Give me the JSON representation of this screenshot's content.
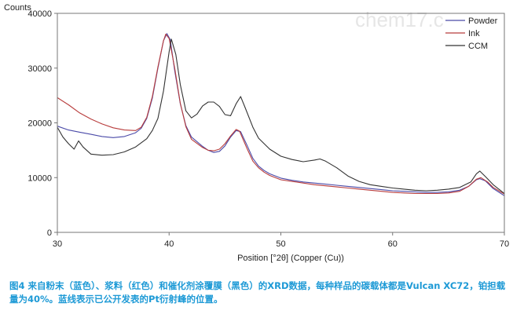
{
  "chart_data": {
    "type": "line",
    "ylabel": "Counts",
    "xlabel": "Position [°2θ] (Copper (Cu))",
    "xlim": [
      30,
      70
    ],
    "ylim": [
      0,
      40000
    ],
    "x_ticks": [
      "30",
      "40",
      "50",
      "60",
      "70"
    ],
    "y_ticks": [
      "0",
      "10000",
      "20000",
      "30000",
      "40000"
    ],
    "grid": false,
    "legend_position": "top-right",
    "series": [
      {
        "name": "Powder",
        "color": "#4a4aa8",
        "points": [
          [
            30,
            19400
          ],
          [
            31,
            18700
          ],
          [
            32,
            18300
          ],
          [
            33,
            17900
          ],
          [
            34,
            17500
          ],
          [
            35,
            17300
          ],
          [
            36,
            17500
          ],
          [
            37,
            18200
          ],
          [
            37.5,
            19000
          ],
          [
            38,
            20800
          ],
          [
            38.5,
            24500
          ],
          [
            39,
            30000
          ],
          [
            39.5,
            35000
          ],
          [
            39.8,
            36300
          ],
          [
            40.1,
            35200
          ],
          [
            40.5,
            29500
          ],
          [
            41,
            23500
          ],
          [
            41.5,
            19500
          ],
          [
            42,
            17400
          ],
          [
            43,
            15700
          ],
          [
            43.5,
            15000
          ],
          [
            44,
            14600
          ],
          [
            44.5,
            14800
          ],
          [
            45,
            15800
          ],
          [
            45.5,
            17400
          ],
          [
            46,
            18600
          ],
          [
            46.4,
            18400
          ],
          [
            47,
            15800
          ],
          [
            47.5,
            13500
          ],
          [
            48,
            12100
          ],
          [
            48.5,
            11300
          ],
          [
            49,
            10700
          ],
          [
            50,
            9900
          ],
          [
            51,
            9500
          ],
          [
            52,
            9200
          ],
          [
            53,
            9000
          ],
          [
            54,
            8800
          ],
          [
            55,
            8600
          ],
          [
            56,
            8400
          ],
          [
            57,
            8200
          ],
          [
            58,
            8000
          ],
          [
            59,
            7800
          ],
          [
            60,
            7600
          ],
          [
            61,
            7500
          ],
          [
            62,
            7400
          ],
          [
            63,
            7300
          ],
          [
            64,
            7300
          ],
          [
            65,
            7400
          ],
          [
            66,
            7700
          ],
          [
            66.8,
            8400
          ],
          [
            67.5,
            9600
          ],
          [
            67.8,
            9800
          ],
          [
            68.3,
            9400
          ],
          [
            69,
            8000
          ],
          [
            70,
            6700
          ]
        ]
      },
      {
        "name": "Ink",
        "color": "#b83c3c",
        "points": [
          [
            30,
            24600
          ],
          [
            31,
            23300
          ],
          [
            32,
            21800
          ],
          [
            33,
            20700
          ],
          [
            34,
            19800
          ],
          [
            35,
            19100
          ],
          [
            36,
            18700
          ],
          [
            37,
            18600
          ],
          [
            37.5,
            19200
          ],
          [
            38,
            21000
          ],
          [
            38.5,
            24800
          ],
          [
            39,
            30200
          ],
          [
            39.5,
            35000
          ],
          [
            39.7,
            36200
          ],
          [
            40,
            35400
          ],
          [
            40.5,
            30000
          ],
          [
            41,
            23600
          ],
          [
            41.5,
            19300
          ],
          [
            42,
            17000
          ],
          [
            43,
            15500
          ],
          [
            43.5,
            15000
          ],
          [
            44,
            14900
          ],
          [
            44.5,
            15200
          ],
          [
            45,
            16200
          ],
          [
            45.5,
            17600
          ],
          [
            46,
            18800
          ],
          [
            46.3,
            18500
          ],
          [
            47,
            15200
          ],
          [
            47.5,
            13000
          ],
          [
            48,
            11800
          ],
          [
            48.5,
            11000
          ],
          [
            49,
            10400
          ],
          [
            50,
            9600
          ],
          [
            51,
            9300
          ],
          [
            52,
            9000
          ],
          [
            53,
            8700
          ],
          [
            54,
            8500
          ],
          [
            55,
            8300
          ],
          [
            56,
            8100
          ],
          [
            57,
            7900
          ],
          [
            58,
            7700
          ],
          [
            59,
            7500
          ],
          [
            60,
            7300
          ],
          [
            61,
            7200
          ],
          [
            62,
            7100
          ],
          [
            63,
            7100
          ],
          [
            64,
            7100
          ],
          [
            65,
            7200
          ],
          [
            66,
            7500
          ],
          [
            66.8,
            8400
          ],
          [
            67.5,
            9700
          ],
          [
            67.9,
            10000
          ],
          [
            68.5,
            9200
          ],
          [
            69,
            8200
          ],
          [
            70,
            7000
          ]
        ]
      },
      {
        "name": "CCM",
        "color": "#333333",
        "points": [
          [
            30,
            19200
          ],
          [
            30.5,
            17400
          ],
          [
            31,
            16200
          ],
          [
            31.5,
            15200
          ],
          [
            31.9,
            16700
          ],
          [
            32.3,
            15600
          ],
          [
            33,
            14300
          ],
          [
            34,
            14100
          ],
          [
            35,
            14200
          ],
          [
            36,
            14700
          ],
          [
            37,
            15600
          ],
          [
            38,
            17100
          ],
          [
            38.5,
            18600
          ],
          [
            39,
            20800
          ],
          [
            39.5,
            25800
          ],
          [
            40,
            33000
          ],
          [
            40.2,
            35300
          ],
          [
            40.6,
            32500
          ],
          [
            41,
            27000
          ],
          [
            41.5,
            22200
          ],
          [
            42,
            20900
          ],
          [
            42.5,
            21600
          ],
          [
            43,
            23100
          ],
          [
            43.5,
            23800
          ],
          [
            44,
            23800
          ],
          [
            44.5,
            23000
          ],
          [
            45,
            21500
          ],
          [
            45.5,
            21300
          ],
          [
            46,
            23500
          ],
          [
            46.4,
            24800
          ],
          [
            46.8,
            22800
          ],
          [
            47.5,
            19200
          ],
          [
            48,
            17200
          ],
          [
            49,
            15200
          ],
          [
            50,
            13900
          ],
          [
            51,
            13300
          ],
          [
            52,
            12900
          ],
          [
            53,
            13200
          ],
          [
            53.5,
            13400
          ],
          [
            54,
            13000
          ],
          [
            55,
            11800
          ],
          [
            56,
            10300
          ],
          [
            57,
            9300
          ],
          [
            58,
            8700
          ],
          [
            59,
            8400
          ],
          [
            60,
            8100
          ],
          [
            61,
            7900
          ],
          [
            62,
            7700
          ],
          [
            63,
            7600
          ],
          [
            64,
            7700
          ],
          [
            65,
            7900
          ],
          [
            66,
            8200
          ],
          [
            67,
            9200
          ],
          [
            67.5,
            10700
          ],
          [
            67.8,
            11200
          ],
          [
            68.3,
            10200
          ],
          [
            69,
            8700
          ],
          [
            70,
            7100
          ]
        ]
      }
    ]
  },
  "watermark": "chem17.c",
  "caption": "图4 来自粉末（蓝色）、浆料（红色）和催化剂涂覆膜（黑色）的XRD数据，每种样品的碳载体都是Vulcan XC72，铂担载量为40%。蓝线表示已公开发表的Pt衍射峰的位置。"
}
